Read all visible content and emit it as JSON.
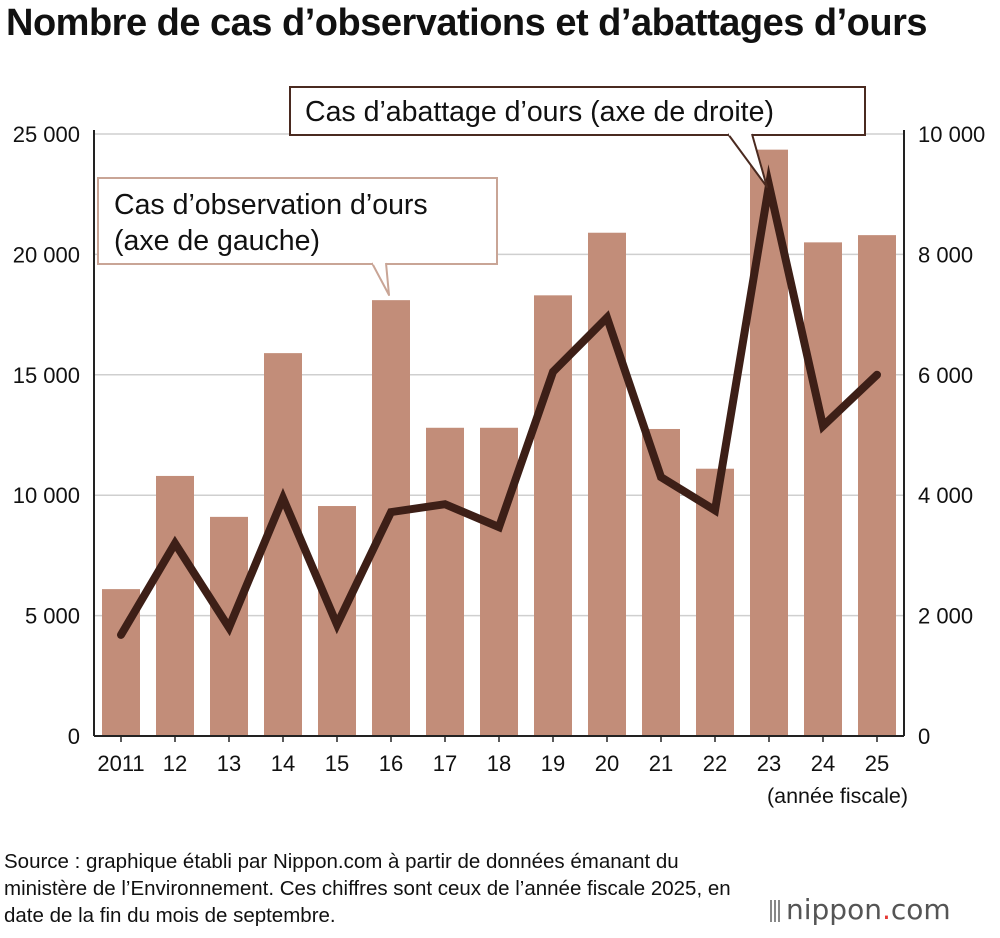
{
  "chart_data": {
    "type": "bar+line",
    "title": "Nombre de cas d’observations et d’abattages d’ours",
    "categories": [
      "2011",
      "12",
      "13",
      "14",
      "15",
      "16",
      "17",
      "18",
      "19",
      "20",
      "21",
      "22",
      "23",
      "24",
      "25"
    ],
    "x_unit_label": "(année fiscale)",
    "series": [
      {
        "name": "Cas d’observation d’ours (axe de gauche)",
        "type": "bar",
        "axis": "left",
        "color": "#c28d79",
        "values": [
          6100,
          10800,
          9100,
          15900,
          9550,
          18100,
          12800,
          12800,
          18300,
          20900,
          12750,
          11100,
          24350,
          20500,
          20800
        ]
      },
      {
        "name": "Cas d’abattage d’ours (axe de droite)",
        "type": "line",
        "axis": "right",
        "color": "#3d1f17",
        "values": [
          1680,
          3200,
          1800,
          3950,
          1850,
          3720,
          3850,
          3470,
          6050,
          6950,
          4300,
          3750,
          9150,
          5150,
          6000
        ]
      }
    ],
    "y_left": {
      "ylim": [
        0,
        25000
      ],
      "ticks": [
        0,
        5000,
        10000,
        15000,
        20000,
        25000
      ],
      "tick_labels": [
        "0",
        "5 000",
        "10 000",
        "15 000",
        "20 000",
        "25 000"
      ]
    },
    "y_right": {
      "ylim": [
        0,
        10000
      ],
      "ticks": [
        0,
        2000,
        4000,
        6000,
        8000,
        10000
      ],
      "tick_labels": [
        "0",
        "2 000",
        "4 000",
        "6 000",
        "8 000",
        "10 000"
      ]
    },
    "grid": true,
    "callouts": {
      "observation_line1": "Cas d’observation d’ours",
      "observation_line2": "(axe de gauche)",
      "abattage": "Cas d’abattage d’ours (axe de droite)"
    }
  },
  "footer": {
    "source": "Source : graphique établi par Nippon.com à partir de données émanant du ministère de l’Environnement. Ces chiffres sont ceux de l’année fiscale 2025, en date de la fin du mois de septembre.",
    "brand_main": "nippon",
    "brand_dot": ".",
    "brand_suffix": "com"
  }
}
